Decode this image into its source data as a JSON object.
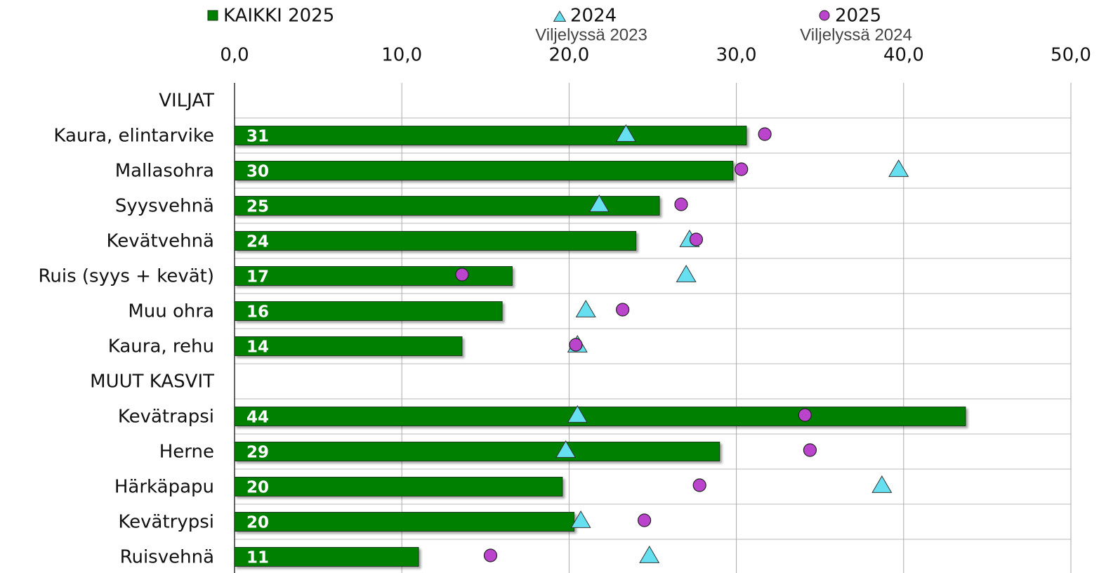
{
  "chart_data": {
    "type": "hbar",
    "categories": [
      "VILJAT",
      "Kaura, elintarvike",
      "Mallasohra",
      "Syysvehnä",
      "Kevätvehnä",
      "Ruis (syys + kevät)",
      "Muu ohra",
      "Kaura, rehu",
      "MUUT KASVIT",
      "Kevätrapsi",
      "Herne",
      "Härkäpapu",
      "Kevätrypsi",
      "Ruisvehnä"
    ],
    "series": [
      {
        "name": "KAIKKI 2025",
        "color": "#008000",
        "marker": "bar",
        "values": [
          null,
          30.6,
          29.8,
          25.4,
          24.0,
          16.6,
          16.0,
          13.6,
          null,
          43.7,
          29.0,
          19.6,
          20.3,
          11.0
        ],
        "value_labels": [
          null,
          "31",
          "30",
          "25",
          "24",
          "17",
          "16",
          "14",
          null,
          "44",
          "29",
          "20",
          "20",
          "11"
        ]
      },
      {
        "name": "2024",
        "legend_note": "Viljelyssä 2023",
        "color": "#66e0f0",
        "marker": "triangle",
        "values": [
          null,
          23.4,
          39.7,
          21.8,
          27.2,
          27.0,
          21.0,
          20.5,
          null,
          20.5,
          19.8,
          38.7,
          20.7,
          24.8
        ]
      },
      {
        "name": "2025",
        "legend_note": "Viljelyssä 2024",
        "color": "#bb44cc",
        "marker": "circle",
        "values": [
          null,
          31.7,
          30.3,
          26.7,
          27.6,
          13.6,
          23.2,
          20.4,
          null,
          34.1,
          34.4,
          27.8,
          24.5,
          15.3
        ]
      }
    ],
    "xlim": [
      0,
      50
    ],
    "xticks": [
      {
        "value": 0,
        "label": "0,0"
      },
      {
        "value": 10,
        "label": "10,0"
      },
      {
        "value": 20,
        "label": "20,0"
      },
      {
        "value": 30,
        "label": "30,0"
      },
      {
        "value": 40,
        "label": "40,0"
      },
      {
        "value": 50,
        "label": "50,0"
      }
    ],
    "grid": true
  }
}
